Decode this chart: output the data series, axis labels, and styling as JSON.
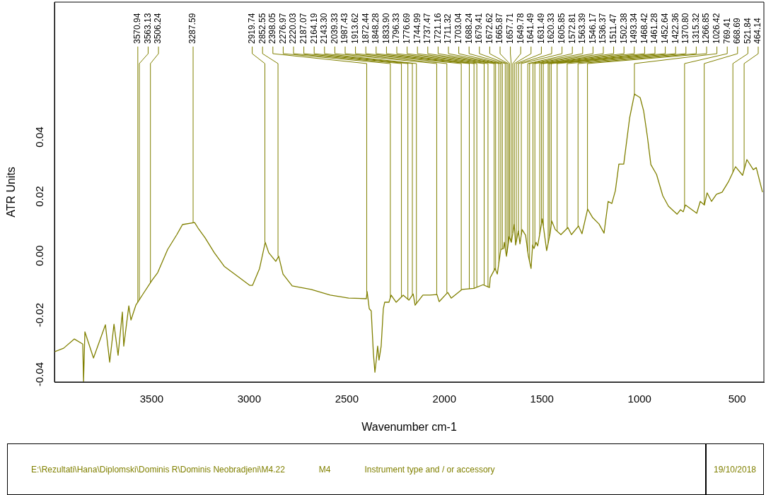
{
  "chart_data": {
    "type": "line",
    "xlabel": "Wavenumber cm-1",
    "ylabel": "ATR Units",
    "xlim": [
      3998,
      363
    ],
    "xticks": [
      3500,
      3000,
      2500,
      2000,
      1500,
      1000,
      500
    ],
    "ylim": [
      -0.0426,
      0.0855
    ],
    "yticks": [
      -0.04,
      -0.02,
      {
        "value": 0,
        "label": "0.00"
      },
      0.02,
      0.04
    ],
    "grid": false,
    "legend": false,
    "marker": "none",
    "line_style": "solid",
    "x": [
      3998,
      3951,
      3896,
      3853,
      3849,
      3842,
      3798,
      3737,
      3715,
      3693,
      3672,
      3650,
      3643,
      3617,
      3606,
      3581,
      3541,
      3498,
      3469,
      3418,
      3371,
      3342,
      3280,
      3262,
      3226,
      3179,
      3128,
      3056,
      2998,
      2983,
      2947,
      2918,
      2900,
      2864,
      2849,
      2827,
      2780,
      2683,
      2585,
      2491,
      2400,
      2396,
      2385,
      2375,
      2364,
      2356,
      2349,
      2342,
      2335,
      2324,
      2313,
      2306,
      2284,
      2273,
      2247,
      2211,
      2182,
      2160,
      2150,
      2110,
      2074,
      2038,
      2027,
      1983,
      1965,
      1910,
      1849,
      1802,
      1769,
      1765,
      1740,
      1729,
      1711,
      1697,
      1693,
      1682,
      1668,
      1657,
      1642,
      1635,
      1621,
      1613,
      1602,
      1584,
      1570,
      1556,
      1548,
      1541,
      1530,
      1522,
      1498,
      1476,
      1458,
      1450,
      1432,
      1403,
      1367,
      1349,
      1313,
      1295,
      1266,
      1240,
      1208,
      1182,
      1161,
      1142,
      1124,
      1106,
      1081,
      1051,
      1026,
      997,
      979,
      960,
      942,
      913,
      881,
      852,
      808,
      790,
      776,
      765,
      707,
      689,
      668,
      654,
      631,
      606,
      577,
      544,
      508,
      472,
      450,
      417,
      402,
      370
    ],
    "series": [
      {
        "color": "#808000",
        "values": [
          -0.0324,
          -0.0312,
          -0.0281,
          -0.0298,
          -0.0424,
          -0.0257,
          -0.0345,
          -0.0233,
          -0.0359,
          -0.0231,
          -0.0336,
          -0.019,
          -0.0305,
          -0.0169,
          -0.0217,
          -0.0167,
          -0.0126,
          -0.0083,
          -0.0057,
          0.0021,
          0.0071,
          0.0105,
          0.0112,
          0.0093,
          0.006,
          0.001,
          -0.0036,
          -0.0071,
          -0.01,
          -0.01,
          -0.0043,
          0.0045,
          0.001,
          -0.0019,
          -0.0002,
          -0.0062,
          -0.0102,
          -0.0114,
          -0.0133,
          -0.0143,
          -0.0145,
          -0.0121,
          -0.0179,
          -0.0186,
          -0.0328,
          -0.0393,
          -0.0352,
          -0.0305,
          -0.0352,
          -0.0305,
          -0.0179,
          -0.0157,
          -0.0157,
          -0.0133,
          -0.0157,
          -0.0133,
          -0.015,
          -0.0129,
          -0.0167,
          -0.0133,
          -0.0133,
          -0.0131,
          -0.0155,
          -0.0124,
          -0.0143,
          -0.0114,
          -0.011,
          -0.0098,
          -0.0107,
          -0.0074,
          -0.0043,
          -0.0062,
          0.0021,
          0.0024,
          0.0045,
          -0.0002,
          0.0064,
          0.0045,
          0.0105,
          0.0036,
          0.0083,
          0.004,
          0.0088,
          0.0069,
          0.0,
          -0.0043,
          0.0036,
          0.0024,
          0.0045,
          0.0033,
          0.0124,
          0.0017,
          0.0076,
          0.0117,
          0.0088,
          0.0071,
          0.0095,
          0.0071,
          0.01,
          0.0074,
          0.0157,
          0.0128,
          0.0107,
          0.0076,
          0.0183,
          0.0176,
          0.0219,
          0.0309,
          0.0309,
          0.0464,
          0.0545,
          0.0533,
          0.0488,
          0.0402,
          0.0307,
          0.0274,
          0.0202,
          0.0167,
          0.014,
          0.0155,
          0.0148,
          0.0171,
          0.0143,
          0.0183,
          0.0171,
          0.0212,
          0.0183,
          0.0207,
          0.0214,
          0.025,
          0.03,
          0.0271,
          0.0324,
          0.029,
          0.0297,
          0.0214
        ]
      }
    ],
    "annotations": [
      {
        "text": "3570.94",
        "x": 3570.94,
        "y": -0.0158
      },
      {
        "text": "3563.13",
        "x": 3563.13,
        "y": -0.0149
      },
      {
        "text": "3506.24",
        "x": 3506.24,
        "y": -0.0091
      },
      {
        "text": "3287.59",
        "x": 3287.59,
        "y": 0.0111
      },
      {
        "text": "2919.74",
        "x": 2919.74,
        "y": 0.0045
      },
      {
        "text": "2852.55",
        "x": 2852.55,
        "y": -0.0002
      },
      {
        "text": "2398.05",
        "x": 2398.05,
        "y": -0.0125
      },
      {
        "text": "2276.97",
        "x": 2276.97,
        "y": -0.0141
      },
      {
        "text": "2220.03",
        "x": 2220.03,
        "y": -0.0139
      },
      {
        "text": "2187.07",
        "x": 2187.07,
        "y": -0.0147
      },
      {
        "text": "2164.19",
        "x": 2164.19,
        "y": -0.0133
      },
      {
        "text": "2143.30",
        "x": 2143.3,
        "y": -0.0161
      },
      {
        "text": "2039.33",
        "x": 2039.33,
        "y": -0.0131
      },
      {
        "text": "1987.43",
        "x": 1987.43,
        "y": -0.0125
      },
      {
        "text": "1913.62",
        "x": 1913.62,
        "y": -0.0116
      },
      {
        "text": "1872.44",
        "x": 1872.44,
        "y": -0.0112
      },
      {
        "text": "1848.28",
        "x": 1848.28,
        "y": -0.011
      },
      {
        "text": "1833.90",
        "x": 1833.9,
        "y": -0.0106
      },
      {
        "text": "1796.33",
        "x": 1796.33,
        "y": -0.01
      },
      {
        "text": "1776.69",
        "x": 1776.69,
        "y": -0.0105
      },
      {
        "text": "1744.99",
        "x": 1744.99,
        "y": -0.0049
      },
      {
        "text": "1737.47",
        "x": 1737.47,
        "y": -0.0047
      },
      {
        "text": "1721.16",
        "x": 1721.16,
        "y": -0.0026
      },
      {
        "text": "1711.32",
        "x": 1711.32,
        "y": 0.0021
      },
      {
        "text": "1703.04",
        "x": 1703.04,
        "y": 0.0023
      },
      {
        "text": "1688.24",
        "x": 1688.24,
        "y": 0.0025
      },
      {
        "text": "1679.41",
        "x": 1679.41,
        "y": 0.001
      },
      {
        "text": "1672.62",
        "x": 1672.62,
        "y": 0.0042
      },
      {
        "text": "1665.87",
        "x": 1665.87,
        "y": 0.006
      },
      {
        "text": "1657.71",
        "x": 1657.71,
        "y": 0.0046
      },
      {
        "text": "1649.78",
        "x": 1649.78,
        "y": 0.0077
      },
      {
        "text": "1641.49",
        "x": 1641.49,
        "y": 0.01
      },
      {
        "text": "1631.49",
        "x": 1631.49,
        "y": 0.0048
      },
      {
        "text": "1620.33",
        "x": 1620.33,
        "y": 0.008
      },
      {
        "text": "1605.85",
        "x": 1605.85,
        "y": 0.0071
      },
      {
        "text": "1572.81",
        "x": 1572.81,
        "y": 0.0014
      },
      {
        "text": "1563.39",
        "x": 1563.39,
        "y": -0.002
      },
      {
        "text": "1546.17",
        "x": 1546.17,
        "y": 0.0033
      },
      {
        "text": "1536.37",
        "x": 1536.37,
        "y": 0.0033
      },
      {
        "text": "1511.47",
        "x": 1511.47,
        "y": 0.0073
      },
      {
        "text": "1502.38",
        "x": 1502.38,
        "y": 0.0109
      },
      {
        "text": "1493.34",
        "x": 1493.34,
        "y": 0.0101
      },
      {
        "text": "1468.42",
        "x": 1468.42,
        "y": 0.0042
      },
      {
        "text": "1461.28",
        "x": 1461.28,
        "y": 0.0066
      },
      {
        "text": "1452.64",
        "x": 1452.64,
        "y": 0.0103
      },
      {
        "text": "1422.36",
        "x": 1422.36,
        "y": 0.0082
      },
      {
        "text": "1370.80",
        "x": 1370.8,
        "y": 0.0093
      },
      {
        "text": "1315.32",
        "x": 1315.32,
        "y": 0.0099
      },
      {
        "text": "1266.85",
        "x": 1266.85,
        "y": 0.0156
      },
      {
        "text": "1026.42",
        "x": 1026.42,
        "y": 0.0545
      },
      {
        "text": "769.41",
        "x": 769.41,
        "y": 0.0162
      },
      {
        "text": "668.69",
        "x": 668.69,
        "y": 0.0171
      },
      {
        "text": "521.84",
        "x": 521.84,
        "y": 0.0281
      },
      {
        "text": "464.14",
        "x": 464.14,
        "y": 0.029
      },
      "E:\\Rezultati\\Hana\\Diplomski\\Dominis R\\Dominis Neobradjeni\\M4.22",
      "M4",
      "Instrument type and / or accessory",
      "19/10/2018"
    ]
  }
}
